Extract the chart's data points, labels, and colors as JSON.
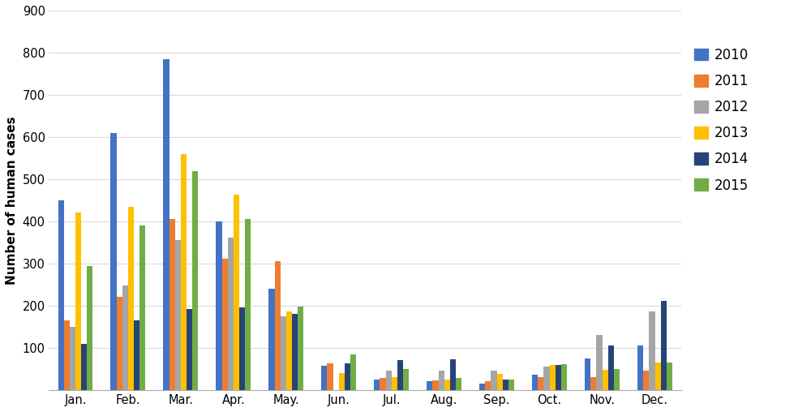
{
  "months": [
    "Jan.",
    "Feb.",
    "Mar.",
    "Apr.",
    "May.",
    "Jun.",
    "Jul.",
    "Aug.",
    "Sep.",
    "Oct.",
    "Nov.",
    "Dec."
  ],
  "series": {
    "2010": [
      450,
      610,
      785,
      400,
      240,
      57,
      25,
      20,
      15,
      35,
      75,
      105
    ],
    "2011": [
      165,
      220,
      405,
      310,
      305,
      62,
      28,
      22,
      20,
      30,
      30,
      45
    ],
    "2012": [
      150,
      248,
      355,
      360,
      175,
      0,
      45,
      45,
      45,
      55,
      130,
      185
    ],
    "2013": [
      420,
      435,
      560,
      462,
      185,
      40,
      30,
      25,
      38,
      58,
      48,
      65
    ],
    "2014": [
      108,
      165,
      192,
      195,
      180,
      63,
      70,
      72,
      25,
      58,
      105,
      210
    ],
    "2015": [
      293,
      390,
      518,
      405,
      198,
      83,
      50,
      28,
      25,
      60,
      50,
      65
    ]
  },
  "colors": {
    "2010": "#4472C4",
    "2011": "#ED7D31",
    "2012": "#A5A5A5",
    "2013": "#FFC000",
    "2014": "#264478",
    "2015": "#70AD47"
  },
  "ylabel": "Number of human cases",
  "ylim": [
    0,
    900
  ],
  "yticks": [
    0,
    100,
    200,
    300,
    400,
    500,
    600,
    700,
    800,
    900
  ],
  "background_color": "#FFFFFF",
  "grid_color": "#D9D9D9",
  "bar_width": 0.11,
  "legend_labels": [
    "2010",
    "2011",
    "2012",
    "2013",
    "2014",
    "2015"
  ]
}
